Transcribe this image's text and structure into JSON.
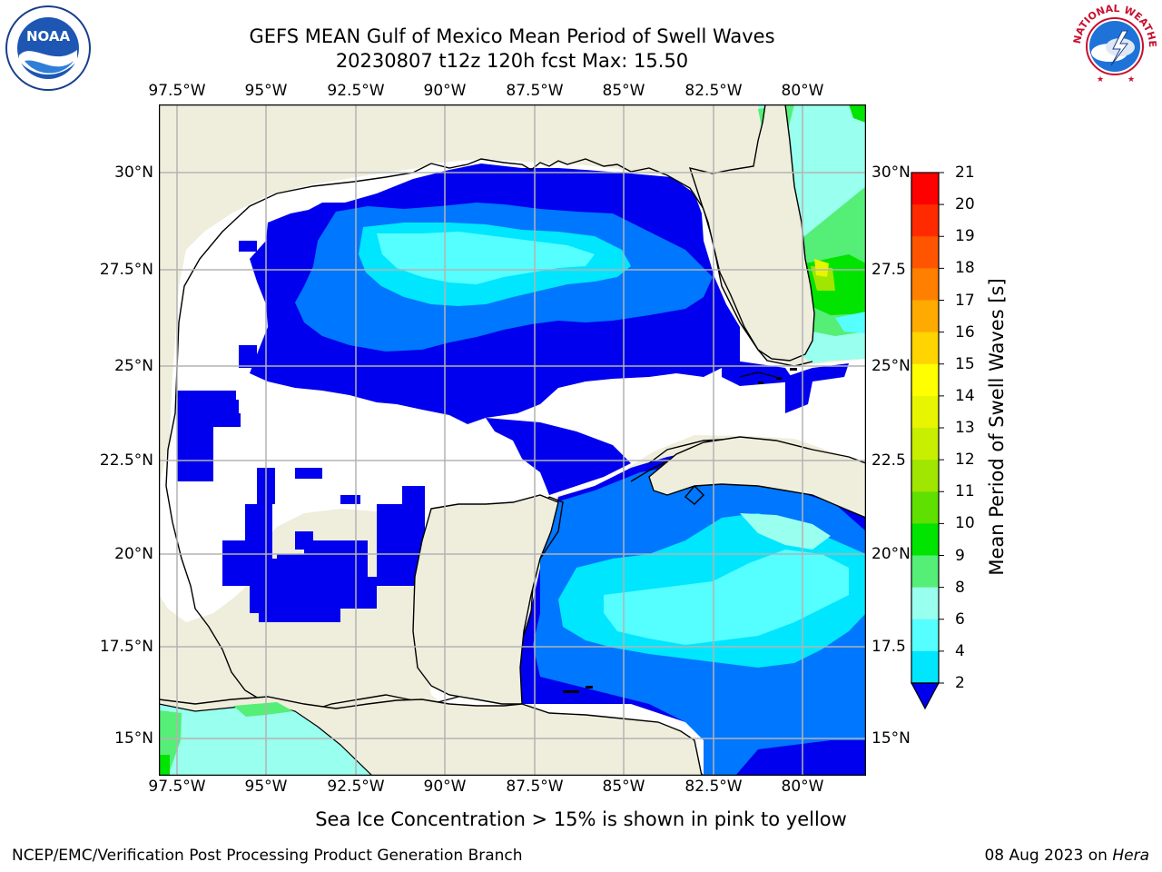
{
  "title": {
    "line1": "GEFS MEAN Gulf of Mexico Mean Period of Swell Waves",
    "line2": "20230807 t12z 120h fcst   Max: 15.50"
  },
  "logos": {
    "noaa": {
      "text": "NOAA",
      "icon": "noaa-logo-icon"
    },
    "nws": {
      "text": "NATIONAL WEATHER SERVICE",
      "icon": "nws-logo-icon"
    }
  },
  "map": {
    "lon_ticks": [
      "97.5°W",
      "95°W",
      "92.5°W",
      "90°W",
      "87.5°W",
      "85°W",
      "82.5°W",
      "80°W"
    ],
    "lat_ticks_left": [
      "30°N",
      "27.5°N",
      "25°N",
      "22.5°N",
      "20°N",
      "17.5°N",
      "15°N"
    ],
    "lat_ticks_right": [
      "30°N",
      "27.5",
      "25°N",
      "22.5",
      "20°N",
      "17.5",
      "15°N"
    ]
  },
  "colorbar": {
    "label": "Mean Period of Swell Waves [s]",
    "ticks": [
      "21",
      "20",
      "19",
      "18",
      "17",
      "16",
      "15",
      "14",
      "13",
      "12",
      "11",
      "10",
      "9",
      "8",
      "6",
      "4",
      "2"
    ],
    "colors": [
      "#ff0000",
      "#ff2a00",
      "#ff5500",
      "#ff7f00",
      "#ffaa00",
      "#ffd400",
      "#ffff00",
      "#e8f500",
      "#c8ee00",
      "#a0e600",
      "#5fe000",
      "#00e400",
      "#55ee77",
      "#99ffee",
      "#55ffff",
      "#00e6ff",
      "#0077ff",
      "#0000ee"
    ]
  },
  "colors": {
    "land": "#efeedc",
    "water_below": "#0000ee",
    "band_2_4": "#0077ff",
    "band_4_6": "#00e6ff",
    "band_6_8": "#55ffff",
    "band_8_9": "#99ffee",
    "band_9_10": "#55ee77",
    "band_10_11": "#00e400"
  },
  "note": "Sea Ice Concentration > 15% is shown in pink to yellow",
  "footer": {
    "left": "NCEP/EMC/Verification Post Processing Product Generation Branch",
    "date": "08 Aug 2023 on",
    "host": "Hera"
  }
}
